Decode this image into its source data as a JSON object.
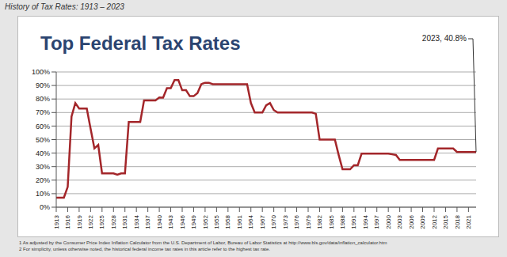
{
  "header": "History of Tax Rates: 1913 – 2023",
  "chart_data": {
    "type": "line",
    "title": "Top Federal Tax Rates",
    "annotation": "2023, 40.8%",
    "x": [
      1913,
      1914,
      1915,
      1916,
      1917,
      1918,
      1919,
      1920,
      1921,
      1922,
      1923,
      1924,
      1925,
      1926,
      1927,
      1928,
      1929,
      1930,
      1931,
      1932,
      1933,
      1934,
      1935,
      1936,
      1937,
      1938,
      1939,
      1940,
      1941,
      1942,
      1943,
      1944,
      1945,
      1946,
      1947,
      1948,
      1949,
      1950,
      1951,
      1952,
      1953,
      1954,
      1955,
      1956,
      1957,
      1958,
      1959,
      1960,
      1961,
      1962,
      1963,
      1964,
      1965,
      1966,
      1967,
      1968,
      1969,
      1970,
      1971,
      1972,
      1973,
      1974,
      1975,
      1976,
      1977,
      1978,
      1979,
      1980,
      1981,
      1982,
      1983,
      1984,
      1985,
      1986,
      1987,
      1988,
      1989,
      1990,
      1991,
      1992,
      1993,
      1994,
      1995,
      1996,
      1997,
      1998,
      1999,
      2000,
      2001,
      2002,
      2003,
      2004,
      2005,
      2006,
      2007,
      2008,
      2009,
      2010,
      2011,
      2012,
      2013,
      2014,
      2015,
      2016,
      2017,
      2018,
      2019,
      2020,
      2021,
      2022,
      2023
    ],
    "values": [
      7,
      7,
      7,
      15,
      67,
      77,
      73,
      73,
      73,
      58,
      43.5,
      46,
      25,
      25,
      25,
      25,
      24,
      25,
      25,
      63,
      63,
      63,
      63,
      79,
      79,
      79,
      79,
      81.1,
      81,
      88,
      88,
      94,
      94,
      86.5,
      86.5,
      82.1,
      82.1,
      84.4,
      91,
      92,
      92,
      91,
      91,
      91,
      91,
      91,
      91,
      91,
      91,
      91,
      91,
      77,
      70,
      70,
      70,
      75.3,
      77,
      71.8,
      70,
      70,
      70,
      70,
      70,
      70,
      70,
      70,
      70,
      70,
      69.1,
      50,
      50,
      50,
      50,
      50,
      38.5,
      28,
      28,
      28,
      31,
      31,
      39.6,
      39.6,
      39.6,
      39.6,
      39.6,
      39.6,
      39.6,
      39.6,
      39.1,
      38.6,
      35,
      35,
      35,
      35,
      35,
      35,
      35,
      35,
      35,
      35,
      43.4,
      43.4,
      43.4,
      43.4,
      43.4,
      40.8,
      40.8,
      40.8,
      40.8,
      40.8,
      40.8
    ],
    "color": "#a3262a",
    "xlim": [
      1913,
      2023
    ],
    "xticks": [
      1913,
      1916,
      1919,
      1922,
      1925,
      1928,
      1931,
      1934,
      1937,
      1940,
      1943,
      1946,
      1949,
      1952,
      1955,
      1958,
      1961,
      1964,
      1967,
      1970,
      1973,
      1976,
      1979,
      1982,
      1985,
      1988,
      1991,
      1994,
      1997,
      2000,
      2003,
      2006,
      2009,
      2012,
      2015,
      2018,
      2021
    ],
    "ylim": [
      0,
      100
    ],
    "yticks": [
      {
        "value": 0,
        "label": "0%"
      },
      {
        "value": 10,
        "label": "10%"
      },
      {
        "value": 20,
        "label": "20%"
      },
      {
        "value": 30,
        "label": "30%"
      },
      {
        "value": 40,
        "label": "40%"
      },
      {
        "value": 50,
        "label": "50%"
      },
      {
        "value": 60,
        "label": "60%"
      },
      {
        "value": 70,
        "label": "70%"
      },
      {
        "value": 80,
        "label": "80%"
      },
      {
        "value": 90,
        "label": "90%"
      },
      {
        "value": 100,
        "label": "100%"
      }
    ],
    "grid": true
  },
  "footnotes": [
    "1  As adjusted by the Consumer Price Index Inflation Calculator from the U.S. Department of Labor, Bureau of Labor Statistics at http://www.bls.gov/data/inflation_calculator.htm",
    "2  For simplicity, unless otherwise noted, the historical federal income tax rates in this article refer to the highest tax rate."
  ]
}
